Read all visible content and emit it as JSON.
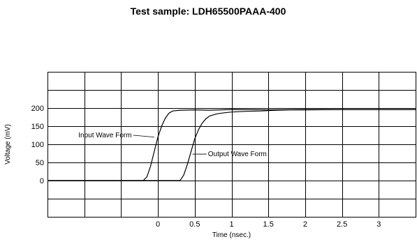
{
  "chart_data": {
    "type": "line",
    "title": "Test sample: LDH65500PAAA-400",
    "xlabel": "Time (nsec.)",
    "ylabel": "Voltage (mV)",
    "xlim": [
      -1.5,
      3.5
    ],
    "ylim": [
      -100,
      300
    ],
    "x_ticks": [
      0,
      0.5,
      1,
      1.5,
      2,
      2.5,
      3
    ],
    "x_tick_labels": [
      "0",
      "0.5",
      "1",
      "1.5",
      "2",
      "2.5",
      "3"
    ],
    "y_ticks": [
      0,
      50,
      100,
      150,
      200
    ],
    "y_tick_labels": [
      "0",
      "50",
      "100",
      "150",
      "200"
    ],
    "x_gridlines": [
      -1.5,
      -1,
      -0.5,
      0,
      0.5,
      1,
      1.5,
      2,
      2.5,
      3,
      3.5
    ],
    "y_gridlines": [
      -100,
      -50,
      0,
      50,
      100,
      150,
      200,
      250,
      300
    ],
    "grid": true,
    "series": [
      {
        "name": "Input Wave Form",
        "x": [
          -1.5,
          -0.2,
          -0.15,
          -0.1,
          -0.05,
          0.0,
          0.05,
          0.1,
          0.15,
          0.2,
          0.3,
          0.5,
          0.7,
          1.0,
          1.5,
          2.0,
          2.5,
          3.0,
          3.5
        ],
        "y": [
          0,
          0,
          10,
          40,
          80,
          120,
          150,
          172,
          186,
          192,
          194,
          195,
          194,
          196,
          195,
          196,
          196,
          196,
          196
        ]
      },
      {
        "name": "Output Wave Form",
        "x": [
          -1.5,
          0.3,
          0.35,
          0.4,
          0.45,
          0.5,
          0.55,
          0.6,
          0.65,
          0.7,
          0.8,
          0.9,
          1.0,
          1.1,
          1.2,
          1.4,
          1.6,
          1.8,
          2.0,
          2.5,
          3.0,
          3.5
        ],
        "y": [
          0,
          0,
          15,
          45,
          80,
          115,
          140,
          158,
          170,
          178,
          184,
          187,
          189,
          190,
          191,
          192,
          194,
          195,
          195,
          196,
          196,
          196
        ]
      }
    ],
    "annotations": [
      {
        "text": "Input Wave Form",
        "x": -1.08,
        "y": 125,
        "arrow_to": [
          -0.05,
          120
        ]
      },
      {
        "text": "Output Wave Form",
        "x": 0.68,
        "y": 73,
        "arrow_to": [
          0.47,
          73
        ]
      }
    ]
  }
}
